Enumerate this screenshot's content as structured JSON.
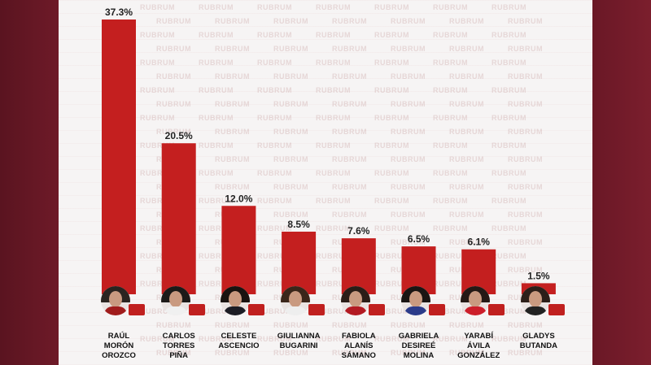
{
  "colors": {
    "bar": "#c41f1f",
    "background_side": "#7a1d2c",
    "card": "#f6f4f4"
  },
  "chart_data": {
    "type": "bar",
    "categories": [
      "RAÚL MORÓN OROZCO",
      "CARLOS TORRES PIÑA",
      "CELESTE ASCENCIO",
      "GIULIANNA BUGARINI",
      "FABIOLA ALANÍS SÁMANO",
      "GABRIELA DESIREÉ MOLINA",
      "YARABÍ ÁVILA GONZÁLEZ",
      "GLADYS BUTANDA"
    ],
    "category_lines": [
      [
        "RAÚL",
        "MORÓN",
        "OROZCO"
      ],
      [
        "CARLOS",
        "TORRES",
        "PIÑA"
      ],
      [
        "CELESTE",
        "ASCENCIO"
      ],
      [
        "GIULIANNA",
        "BUGARINI"
      ],
      [
        "FABIOLA",
        "ALANÍS",
        "SÁMANO"
      ],
      [
        "GABRIELA",
        "DESIREÉ",
        "MOLINA"
      ],
      [
        "YARABÍ",
        "ÁVILA",
        "GONZÁLEZ"
      ],
      [
        "GLADYS",
        "BUTANDA"
      ]
    ],
    "values": [
      37.3,
      20.5,
      12.0,
      8.5,
      7.6,
      6.5,
      6.1,
      1.5
    ],
    "data_labels": [
      "37.3%",
      "20.5%",
      "12.0%",
      "8.5%",
      "7.6%",
      "6.5%",
      "6.1%",
      "1.5%"
    ],
    "ylim": [
      0,
      37.3
    ],
    "grid": false,
    "title": "",
    "xlabel": "",
    "ylabel": ""
  },
  "avatars": [
    {
      "name": "avatar-raul-moron",
      "hair": "#2a2420",
      "shirt": "#a01c1c"
    },
    {
      "name": "avatar-carlos-torres",
      "hair": "#1c1a18",
      "shirt": "#f0f0f0"
    },
    {
      "name": "avatar-celeste-ascencio",
      "hair": "#191310",
      "shirt": "#1c1c24"
    },
    {
      "name": "avatar-giulianna-bugarini",
      "hair": "#3a261a",
      "shirt": "#eeeeee"
    },
    {
      "name": "avatar-fabiola-alanis",
      "hair": "#2a1d17",
      "shirt": "#b31a22"
    },
    {
      "name": "avatar-gabriela-molina",
      "hair": "#1a1513",
      "shirt": "#2b3b8a"
    },
    {
      "name": "avatar-yarabi-avila",
      "hair": "#241915",
      "shirt": "#cc1e2a"
    },
    {
      "name": "avatar-gladys-butanda",
      "hair": "#2c1f19",
      "shirt": "#222222"
    }
  ],
  "badge_icon": "party-logo-badge",
  "watermark_text": "RUBRUM"
}
